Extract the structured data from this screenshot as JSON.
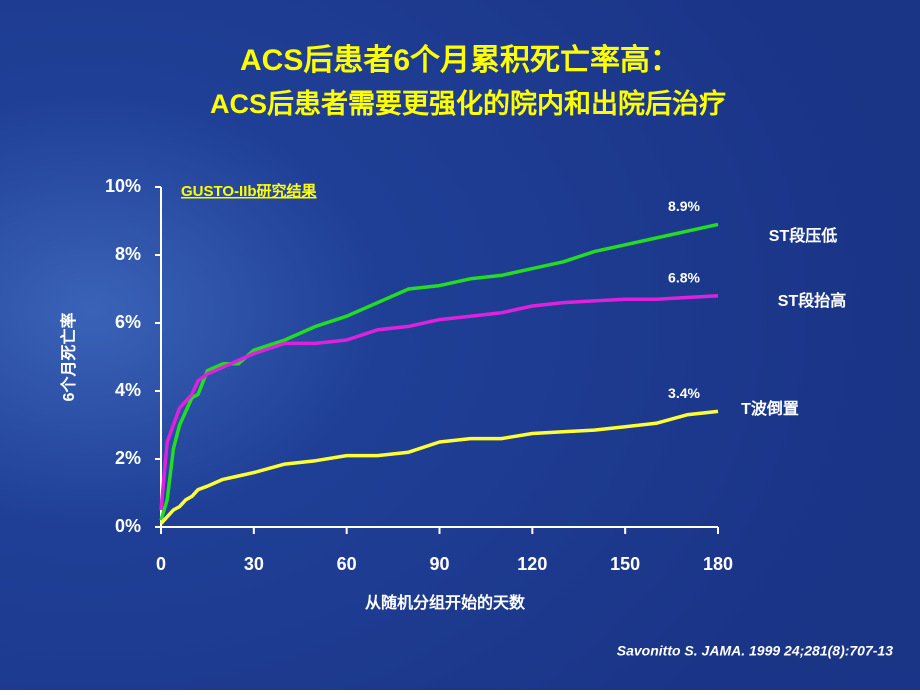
{
  "chart_data": {
    "type": "line",
    "title": "ACS后患者6个月累积死亡率高：",
    "subtitle": "ACS后患者需要更强化的院内和出院后治疗",
    "annotation": "GUSTO-IIb研究结果",
    "source": "Savonitto S. JAMA. 1999 24;281(8):707-13",
    "x_label": "从随机分组开始的天数",
    "y_label": "6个月死亡率",
    "x": [
      0,
      2,
      4,
      6,
      8,
      10,
      12,
      15,
      20,
      25,
      30,
      40,
      50,
      60,
      70,
      80,
      90,
      100,
      110,
      120,
      130,
      140,
      150,
      160,
      170,
      180
    ],
    "series": [
      {
        "name": "ST段压低",
        "color": "#22dd22",
        "values": [
          0.2,
          0.8,
          2.3,
          3.0,
          3.4,
          3.8,
          3.9,
          4.6,
          4.8,
          4.8,
          5.2,
          5.5,
          5.9,
          6.2,
          6.6,
          7.0,
          7.1,
          7.3,
          7.4,
          7.6,
          7.8,
          8.1,
          8.3,
          8.5,
          8.7,
          8.9
        ],
        "value_labels": [
          null,
          null,
          null,
          null,
          null,
          null,
          null,
          null,
          null,
          null,
          null,
          null,
          null,
          null,
          null,
          null,
          null,
          null,
          null,
          null,
          null,
          null,
          null,
          null,
          null,
          "8.9%"
        ]
      },
      {
        "name": "ST段抬高",
        "color": "#dd22dd",
        "values": [
          0.5,
          2.5,
          3.0,
          3.5,
          3.7,
          3.9,
          4.3,
          4.5,
          4.7,
          4.9,
          5.1,
          5.4,
          5.4,
          5.5,
          5.8,
          5.9,
          6.1,
          6.2,
          6.3,
          6.5,
          6.6,
          6.65,
          6.7,
          6.7,
          6.75,
          6.8
        ],
        "value_labels": [
          null,
          null,
          null,
          null,
          null,
          null,
          null,
          null,
          null,
          null,
          null,
          null,
          null,
          null,
          null,
          null,
          null,
          null,
          null,
          null,
          null,
          null,
          null,
          null,
          null,
          "6.8%"
        ]
      },
      {
        "name": "T波倒置",
        "color": "#ffff33",
        "values": [
          0.1,
          0.3,
          0.5,
          0.6,
          0.8,
          0.9,
          1.1,
          1.2,
          1.4,
          1.5,
          1.6,
          1.85,
          1.95,
          2.1,
          2.1,
          2.2,
          2.5,
          2.6,
          2.6,
          2.75,
          2.8,
          2.85,
          2.95,
          3.05,
          3.3,
          3.4
        ],
        "value_labels": [
          null,
          null,
          null,
          null,
          null,
          null,
          null,
          null,
          null,
          null,
          null,
          null,
          null,
          null,
          null,
          null,
          null,
          null,
          null,
          null,
          null,
          null,
          null,
          null,
          null,
          "3.4%"
        ]
      }
    ],
    "xlim": [
      0,
      180
    ],
    "xticks": [
      0,
      30,
      60,
      90,
      120,
      150,
      180
    ],
    "ylim": [
      0,
      10
    ],
    "yticks": [
      {
        "value": 0,
        "label": "0%"
      },
      {
        "value": 2,
        "label": "2%"
      },
      {
        "value": 4,
        "label": "4%"
      },
      {
        "value": 6,
        "label": "6%"
      },
      {
        "value": 8,
        "label": "8%"
      },
      {
        "value": 10,
        "label": "10%"
      }
    ],
    "grid": false
  }
}
